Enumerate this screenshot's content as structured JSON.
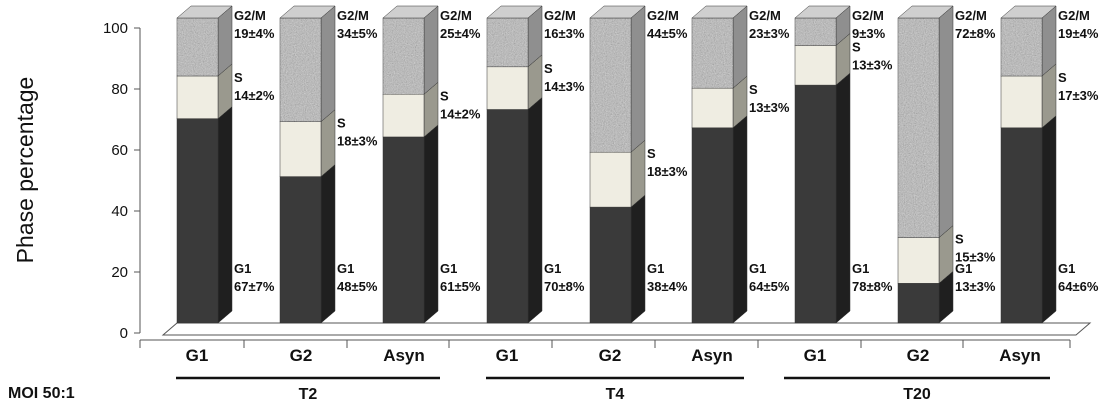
{
  "chart_data": {
    "type": "bar",
    "stacked": true,
    "ylabel": "Phase percentage",
    "ylim": [
      0,
      100
    ],
    "yticks": [
      "0",
      "20",
      "40",
      "60",
      "80",
      "100"
    ],
    "categories": [
      "G1",
      "G2",
      "Asyn",
      "G1",
      "G2",
      "Asyn",
      "G1",
      "G2",
      "Asyn"
    ],
    "groups": [
      {
        "label": "T2",
        "categories": [
          0,
          1,
          2
        ]
      },
      {
        "label": "T4",
        "categories": [
          3,
          4,
          5
        ]
      },
      {
        "label": "T20",
        "categories": [
          6,
          7,
          8
        ]
      }
    ],
    "row_label": "MOI 50:1",
    "series": [
      {
        "name": "G1",
        "color": "#3a3a3a",
        "values": [
          67,
          48,
          61,
          70,
          38,
          64,
          78,
          13,
          64
        ],
        "labels": [
          "67±7%",
          "48±5%",
          "61±5%",
          "70±8%",
          "38±4%",
          "64±5%",
          "78±8%",
          "13±3%",
          "64±6%"
        ]
      },
      {
        "name": "S",
        "color": "#efede2",
        "values": [
          14,
          18,
          14,
          14,
          18,
          13,
          13,
          15,
          17
        ],
        "labels": [
          "14±2%",
          "18±3%",
          "14±2%",
          "14±3%",
          "18±3%",
          "13±3%",
          "13±3%",
          "15±3%",
          "17±3%"
        ]
      },
      {
        "name": "G2/M",
        "color": "#b4b4b4",
        "values": [
          19,
          34,
          25,
          16,
          44,
          23,
          9,
          72,
          19
        ],
        "labels": [
          "19±4%",
          "34±5%",
          "25±4%",
          "16±3%",
          "44±5%",
          "23±3%",
          "9±3%",
          "72±8%",
          "19±4%"
        ]
      }
    ]
  }
}
